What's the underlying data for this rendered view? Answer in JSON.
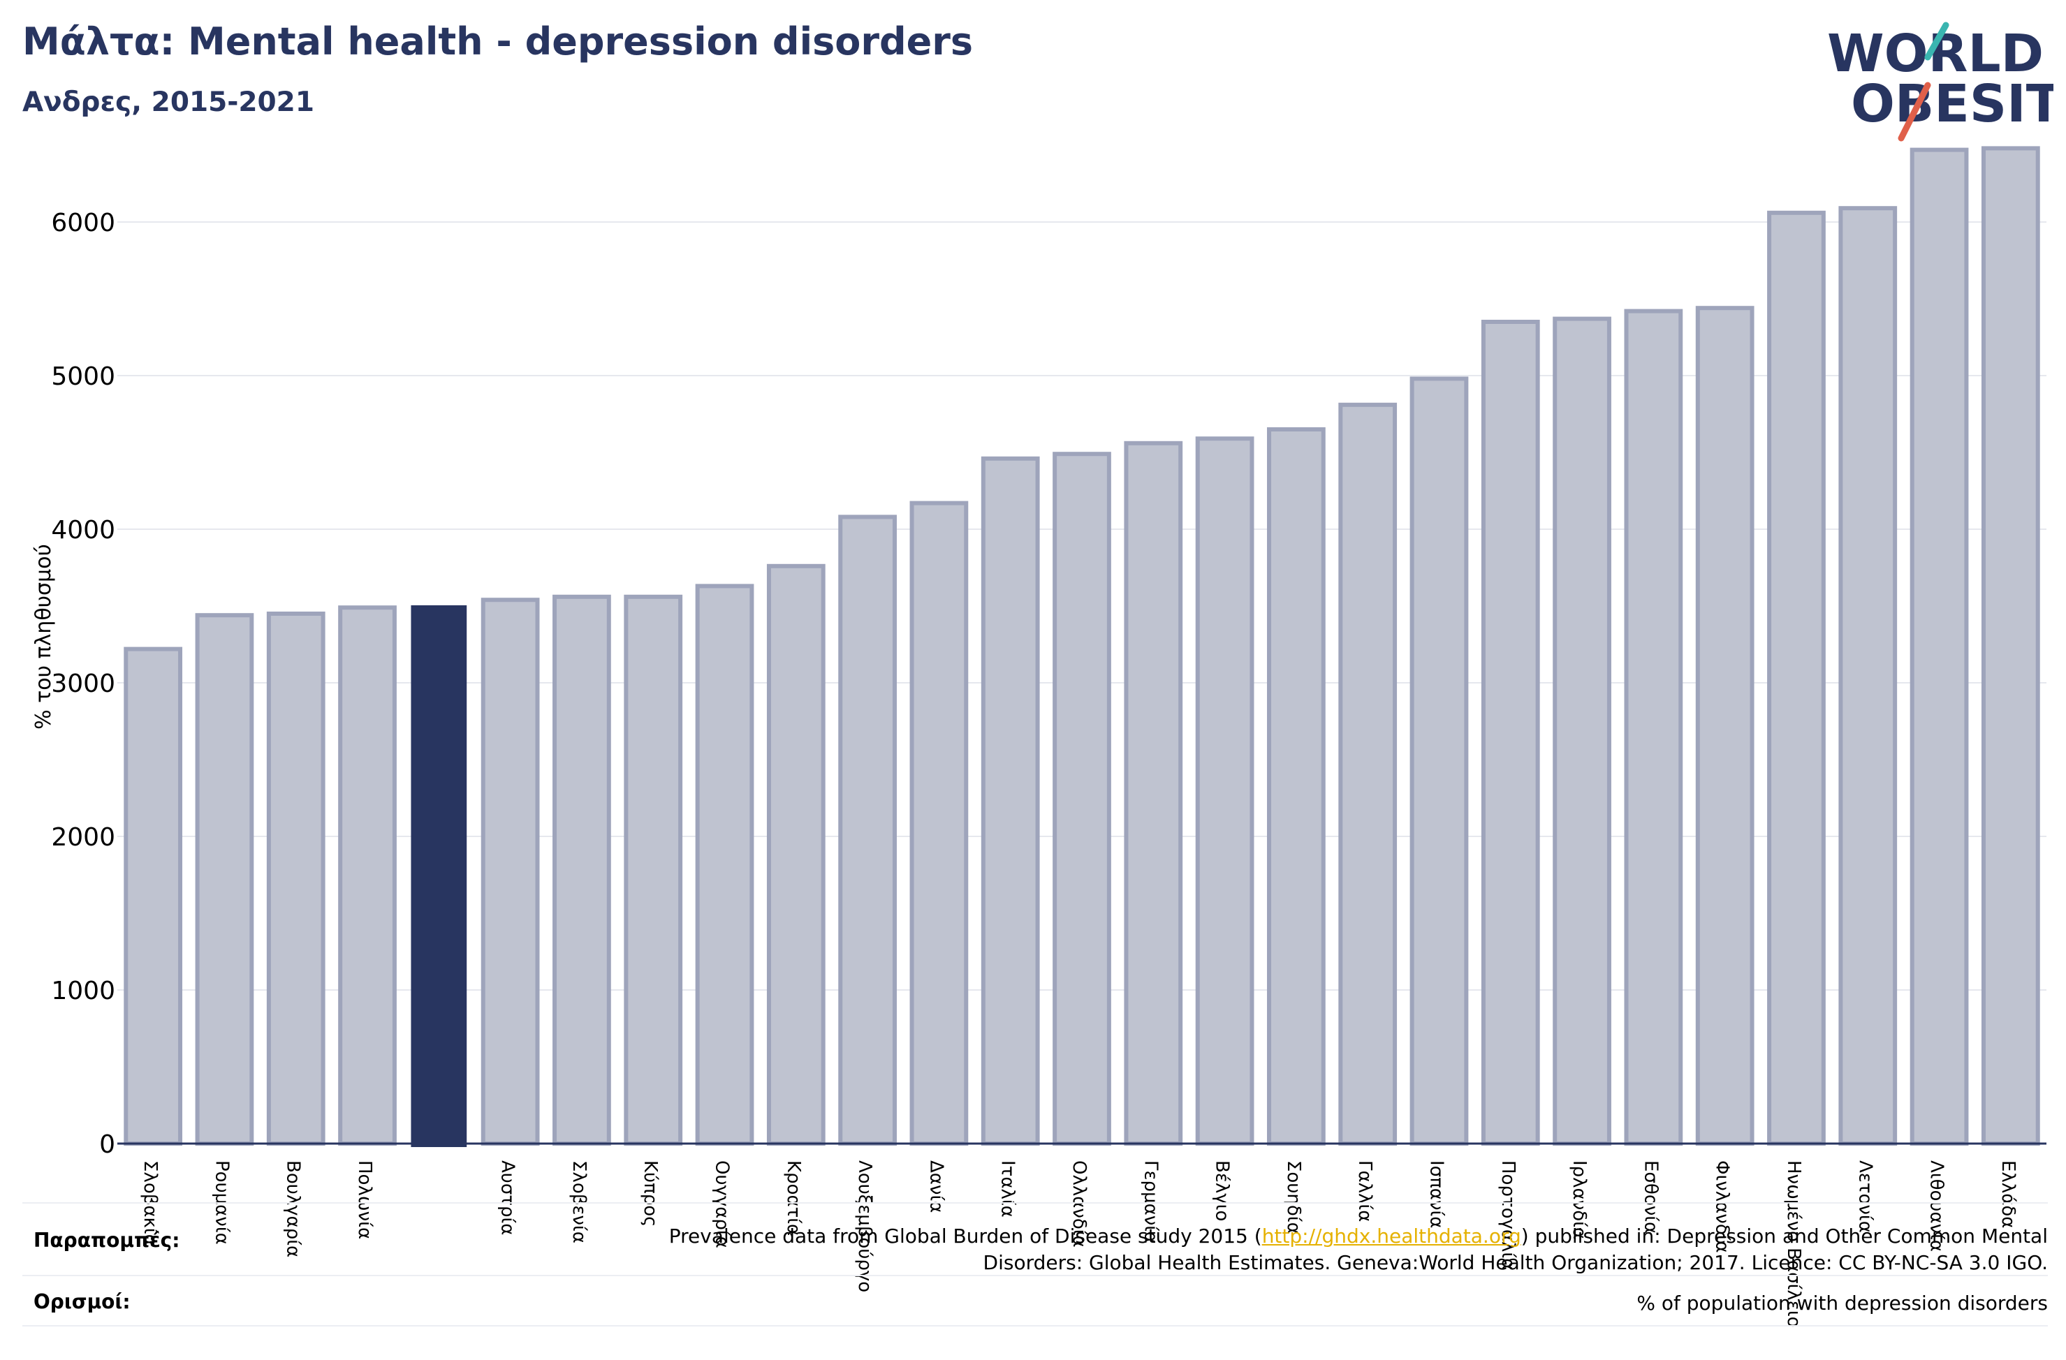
{
  "header": {
    "title": "Μάλτα: Mental health - depression disorders",
    "subtitle": "Ανδρες, 2015-2021"
  },
  "logo": {
    "line1": "WORLD",
    "line2": "OBESITY",
    "colors": {
      "text": "#283560",
      "accent_teal": "#3ab5b0",
      "accent_red": "#e0604a"
    }
  },
  "colors": {
    "bar_default": "#bfc3d0",
    "bar_border": "#9ea4bb",
    "bar_highlight": "#283560",
    "grid": "#e6e8ee",
    "axis": "#283560",
    "text": "#283560"
  },
  "chart_data": {
    "type": "bar",
    "title": "Μάλτα: Mental health - depression disorders",
    "subtitle": "Ανδρες, 2015-2021",
    "ylabel": "% του πληθυσμού",
    "xlabel": "",
    "ylim": [
      0,
      6600
    ],
    "yticks": [
      0,
      1000,
      2000,
      3000,
      4000,
      5000,
      6000
    ],
    "grid": true,
    "highlight_index": 4,
    "categories": [
      "Σλοβακία",
      "Ρουμανία",
      "Βουλγαρία",
      "Πολωνία",
      "",
      "Αυστρία",
      "Σλοβενία",
      "Κύπρος",
      "Ουγγαρία",
      "Κροατία",
      "Λουξεμβούργο",
      "Δανία",
      "Ιταλία",
      "Ολλανδία",
      "Γερμανία",
      "Βέλγιο",
      "Σουηδία",
      "Γαλλία",
      "Ισπανία",
      "Πορτογαλία",
      "Ιρλανδία",
      "Εσθονία",
      "Φινλανδία",
      "Ηνωμένο Βασίλειο",
      "Λετονία",
      "Λιθουανία",
      "Ελλάδα"
    ],
    "values": [
      3220,
      3440,
      3450,
      3490,
      3500,
      3540,
      3560,
      3560,
      3630,
      3760,
      4080,
      4170,
      4460,
      4490,
      4560,
      4590,
      4650,
      4810,
      4980,
      5350,
      5370,
      5420,
      5440,
      6060,
      6090,
      6470,
      6480
    ]
  },
  "notes": {
    "references_label": "Παραπομπές:",
    "references_text_before": "Prevalence data from Global Burden of Disease study 2015 (",
    "references_link": "http://ghdx.healthdata.org",
    "references_text_after": ") published in: Depression and Other Common Mental",
    "references_line2": "Disorders: Global Health Estimates. Geneva:World Health Organization; 2017. Licence: CC BY-NC-SA 3.0 IGO.",
    "definitions_label": "Ορισμοί:",
    "definitions_text": "% of population with depression disorders"
  }
}
